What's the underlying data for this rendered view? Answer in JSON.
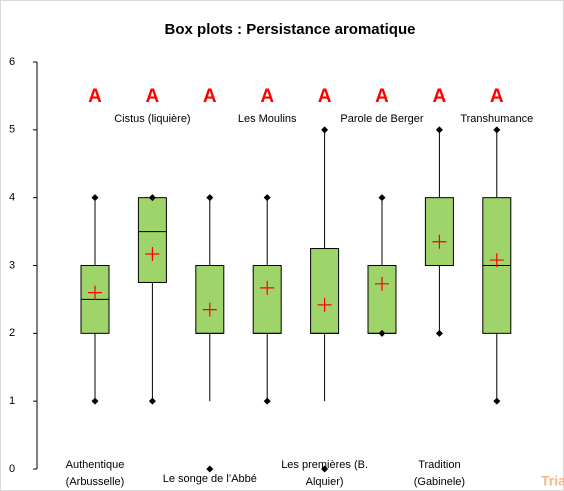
{
  "chart_data": {
    "type": "box",
    "title": "Box plots : Persistance aromatique",
    "categories": [
      [
        "Authentique",
        "(Arbusselle)"
      ],
      [
        "Cistus (liquière)"
      ],
      [
        "Le songe de l’Abbé"
      ],
      [
        "Les Moulins"
      ],
      [
        "Les premières (B.",
        "Alquier)"
      ],
      [
        "Parole de Berger"
      ],
      [
        "Tradition",
        "(Gabinele)"
      ],
      [
        "Transhumance"
      ]
    ],
    "group_letters": [
      "A",
      "A",
      "A",
      "A",
      "A",
      "A",
      "A",
      "A"
    ],
    "boxes": [
      {
        "whisker_low": 1,
        "q1": 2,
        "median": 2.5,
        "q3": 3,
        "whisker_high": 4,
        "mean": 2.6,
        "points": [
          1,
          4
        ]
      },
      {
        "whisker_low": 1,
        "q1": 2.75,
        "median": 3.5,
        "q3": 4,
        "whisker_high": 4,
        "mean": 3.17,
        "points": [
          1,
          4
        ]
      },
      {
        "whisker_low": 1,
        "q1": 2,
        "median": 2,
        "q3": 3,
        "whisker_high": 4,
        "mean": 2.35,
        "points": [
          0,
          4
        ]
      },
      {
        "whisker_low": 1,
        "q1": 2,
        "median": 2,
        "q3": 3,
        "whisker_high": 4,
        "mean": 2.67,
        "points": [
          1,
          4
        ]
      },
      {
        "whisker_low": 1,
        "q1": 2,
        "median": 2,
        "q3": 3.25,
        "whisker_high": 5,
        "mean": 2.42,
        "points": [
          0,
          5
        ]
      },
      {
        "whisker_low": 2,
        "q1": 2,
        "median": 2,
        "q3": 3,
        "whisker_high": 4,
        "mean": 2.73,
        "points": [
          2,
          4
        ]
      },
      {
        "whisker_low": 2,
        "q1": 3,
        "median": 3,
        "q3": 4,
        "whisker_high": 5,
        "mean": 3.35,
        "points": [
          2,
          5
        ]
      },
      {
        "whisker_low": 1,
        "q1": 2,
        "median": 3,
        "q3": 4,
        "whisker_high": 5,
        "mean": 3.08,
        "points": [
          1,
          5
        ]
      }
    ],
    "box_color": "#9ed46a",
    "mean_color": "#ff0000",
    "letter_color": "#ff0000",
    "ylim": [
      0,
      6
    ],
    "yticks": [
      0,
      1,
      2,
      3,
      4,
      5,
      6
    ],
    "watermark": "Tria"
  }
}
